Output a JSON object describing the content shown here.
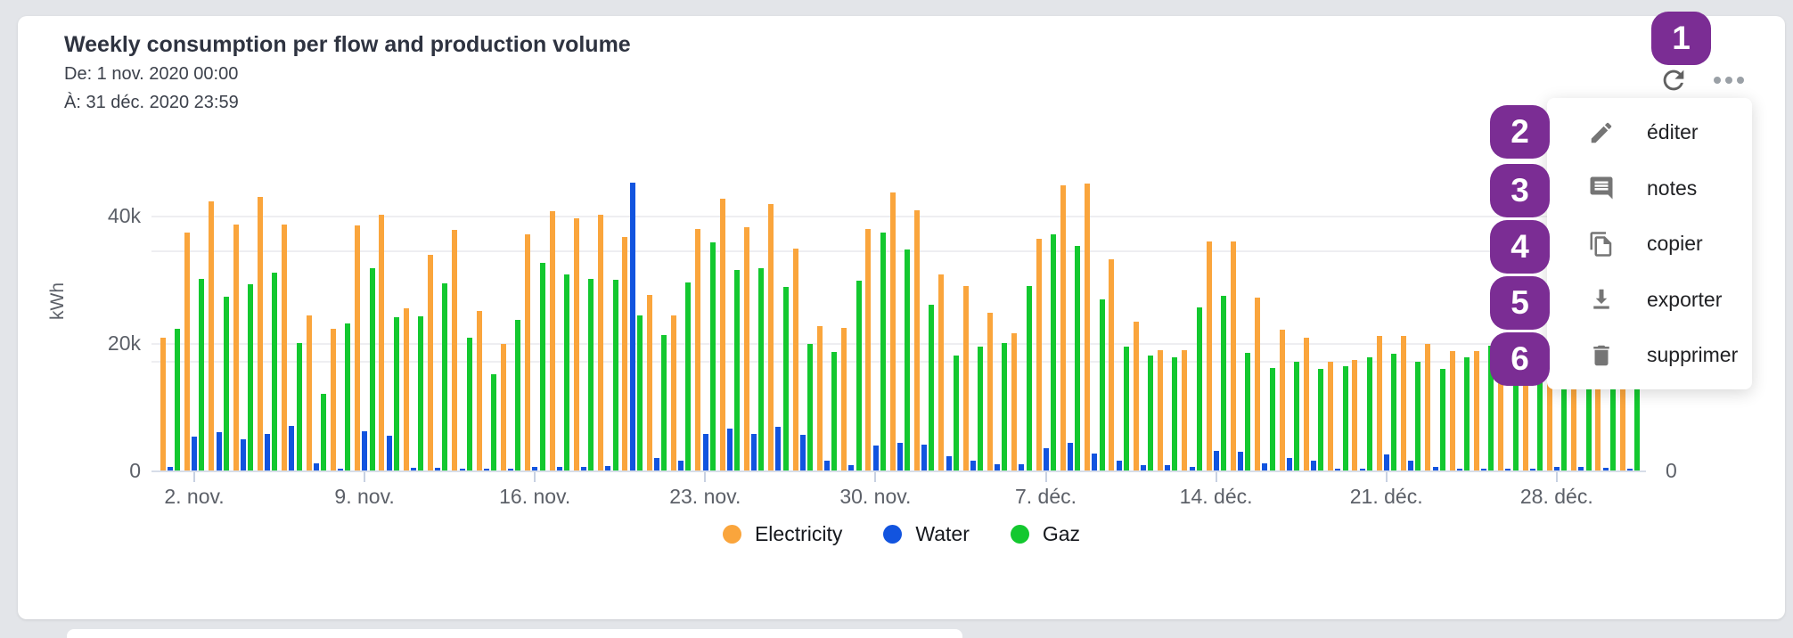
{
  "header": {
    "title": "Weekly consumption per flow and production volume",
    "date_from": "De: 1 nov. 2020 00:00",
    "date_to": "À: 31 déc. 2020 23:59"
  },
  "toolbar": {
    "refresh_icon": "refresh",
    "more_icon": "more-horizontal"
  },
  "menu": {
    "items": [
      {
        "label": "éditer",
        "icon": "pencil"
      },
      {
        "label": "notes",
        "icon": "comment"
      },
      {
        "label": "copier",
        "icon": "copy"
      },
      {
        "label": "exporter",
        "icon": "download"
      },
      {
        "label": "supprimer",
        "icon": "trash"
      }
    ]
  },
  "annotations": {
    "badge_color": "#7B2D94",
    "badges": [
      "1",
      "2",
      "3",
      "4",
      "5",
      "6"
    ]
  },
  "chart_data": {
    "type": "bar",
    "y_axis_label": "kWh",
    "y_ticks_left": [
      "0",
      "20k",
      "40k"
    ],
    "y_tick_right": "0",
    "ylim": [
      0,
      50000
    ],
    "grid": true,
    "legend_position": "bottom",
    "x_tick_labels": [
      "2. nov.",
      "9. nov.",
      "16. nov.",
      "23. nov.",
      "30. nov.",
      "7. déc.",
      "14. déc.",
      "21. déc.",
      "28. déc."
    ],
    "categories": [
      "1 nov.",
      "2 nov.",
      "3 nov.",
      "4 nov.",
      "5 nov.",
      "6 nov.",
      "7 nov.",
      "8 nov.",
      "9 nov.",
      "10 nov.",
      "11 nov.",
      "12 nov.",
      "13 nov.",
      "14 nov.",
      "15 nov.",
      "16 nov.",
      "17 nov.",
      "18 nov.",
      "19 nov.",
      "20 nov.",
      "21 nov.",
      "22 nov.",
      "23 nov.",
      "24 nov.",
      "25 nov.",
      "26 nov.",
      "27 nov.",
      "28 nov.",
      "29 nov.",
      "30 nov.",
      "1 déc.",
      "2 déc.",
      "3 déc.",
      "4 déc.",
      "5 déc.",
      "6 déc.",
      "7 déc.",
      "8 déc.",
      "9 déc.",
      "10 déc.",
      "11 déc.",
      "12 déc.",
      "13 déc.",
      "14 déc.",
      "15 déc.",
      "16 déc.",
      "17 déc.",
      "18 déc.",
      "19 déc.",
      "20 déc.",
      "21 déc.",
      "22 déc.",
      "23 déc.",
      "24 déc.",
      "25 déc.",
      "26 déc.",
      "27 déc.",
      "28 déc.",
      "29 déc.",
      "30 déc.",
      "31 déc."
    ],
    "series": [
      {
        "name": "Electricity",
        "color": "#FAA53C",
        "values": [
          20900,
          37400,
          42200,
          38600,
          43000,
          38600,
          24300,
          22300,
          38400,
          40100,
          25400,
          33900,
          37700,
          25100,
          19900,
          37000,
          40700,
          39600,
          40100,
          36700,
          27500,
          24400,
          37900,
          42600,
          38200,
          41800,
          34800,
          22600,
          22400,
          37900,
          43600,
          40800,
          30700,
          28900,
          24700,
          21600,
          36400,
          44700,
          45100,
          33200,
          23400,
          18900,
          18900,
          35900,
          35900,
          27200,
          22100,
          20800,
          17100,
          17300,
          21100,
          21100,
          19900,
          18800,
          18700,
          17500,
          18000,
          19000,
          18500,
          19500,
          20000
        ]
      },
      {
        "name": "Water",
        "color": "#1254DF",
        "values": [
          600,
          5300,
          6000,
          4900,
          5700,
          7000,
          1100,
          300,
          6200,
          5400,
          400,
          400,
          300,
          300,
          300,
          500,
          500,
          600,
          700,
          45200,
          1900,
          1600,
          5700,
          6600,
          5800,
          6800,
          5600,
          1600,
          900,
          3900,
          4300,
          4100,
          2300,
          1500,
          1000,
          1000,
          3500,
          4300,
          2700,
          1500,
          900,
          900,
          600,
          3100,
          2900,
          1100,
          1900,
          1500,
          300,
          300,
          2500,
          1600,
          500,
          300,
          300,
          300,
          300,
          600,
          500,
          400,
          300
        ]
      },
      {
        "name": "Gaz",
        "color": "#13C82F",
        "values": [
          22300,
          30100,
          27300,
          29200,
          31100,
          20000,
          12000,
          23100,
          31700,
          24000,
          24200,
          29400,
          20900,
          15100,
          23700,
          32600,
          30700,
          30100,
          29900,
          24400,
          21200,
          29500,
          35800,
          31400,
          31700,
          28800,
          19900,
          18600,
          29800,
          37300,
          34700,
          26000,
          18100,
          19500,
          20000,
          28900,
          37000,
          35200,
          26900,
          19500,
          18100,
          17800,
          25600,
          27400,
          18500,
          16100,
          17100,
          16000,
          16300,
          17700,
          18300,
          17000,
          16000,
          17700,
          19600,
          18000,
          17500,
          18500,
          18000,
          18500,
          18000
        ]
      }
    ]
  }
}
